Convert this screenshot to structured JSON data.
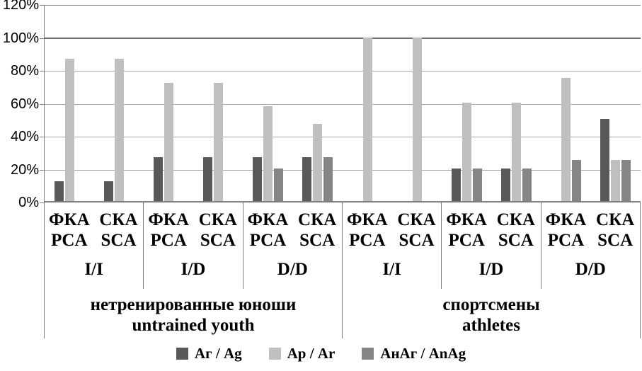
{
  "chart_data": {
    "type": "bar",
    "title": "",
    "y_axis": {
      "ticks": [
        "120%",
        "100%",
        "80%",
        "60%",
        "40%",
        "20%",
        "0%"
      ],
      "max": 120,
      "step": 20,
      "grid": true
    },
    "colors": {
      "grid": "#a6a6a6",
      "axis": "#808080",
      "hundred_line": "#6e6e6e"
    },
    "series": [
      {
        "name": "Аг / Ag",
        "color": "#595959"
      },
      {
        "name": "Ар / Ar",
        "color": "#bfbfbf"
      },
      {
        "name": "АнАг / AnAg",
        "color": "#868686"
      }
    ],
    "legend_position": "bottom",
    "populations": [
      {
        "label_ru": "нетренированные юноши",
        "label_en": "untrained youth",
        "genotypes": [
          {
            "label": "I/I",
            "subgroups": [
              {
                "label_ru": "ФКА",
                "label_en": "PCA",
                "values": [
                  12,
                  87,
                  0
                ]
              },
              {
                "label_ru": "СКА",
                "label_en": "SCA",
                "values": [
                  12,
                  87,
                  0
                ]
              }
            ]
          },
          {
            "label": "I/D",
            "subgroups": [
              {
                "label_ru": "ФКА",
                "label_en": "PCA",
                "values": [
                  27,
                  72,
                  0
                ]
              },
              {
                "label_ru": "СКА",
                "label_en": "SCA",
                "values": [
                  27,
                  72,
                  0
                ]
              }
            ]
          },
          {
            "label": "D/D",
            "subgroups": [
              {
                "label_ru": "ФКА",
                "label_en": "PCA",
                "values": [
                  27,
                  58,
                  20
                ]
              },
              {
                "label_ru": "СКА",
                "label_en": "SCA",
                "values": [
                  27,
                  47,
                  27
                ]
              }
            ]
          }
        ]
      },
      {
        "label_ru": "спортсмены",
        "label_en": "athletes",
        "genotypes": [
          {
            "label": "I/I",
            "subgroups": [
              {
                "label_ru": "ФКА",
                "label_en": "PCA",
                "values": [
                  0,
                  100,
                  0
                ]
              },
              {
                "label_ru": "СКА",
                "label_en": "SCA",
                "values": [
                  0,
                  100,
                  0
                ]
              }
            ]
          },
          {
            "label": "I/D",
            "subgroups": [
              {
                "label_ru": "ФКА",
                "label_en": "PCA",
                "values": [
                  20,
                  60,
                  20
                ]
              },
              {
                "label_ru": "СКА",
                "label_en": "SCA",
                "values": [
                  20,
                  60,
                  20
                ]
              }
            ]
          },
          {
            "label": "D/D",
            "subgroups": [
              {
                "label_ru": "ФКА",
                "label_en": "PCA",
                "values": [
                  0,
                  75,
                  25
                ]
              },
              {
                "label_ru": "СКА",
                "label_en": "SCA",
                "values": [
                  50,
                  25,
                  25
                ]
              }
            ]
          }
        ]
      }
    ]
  }
}
